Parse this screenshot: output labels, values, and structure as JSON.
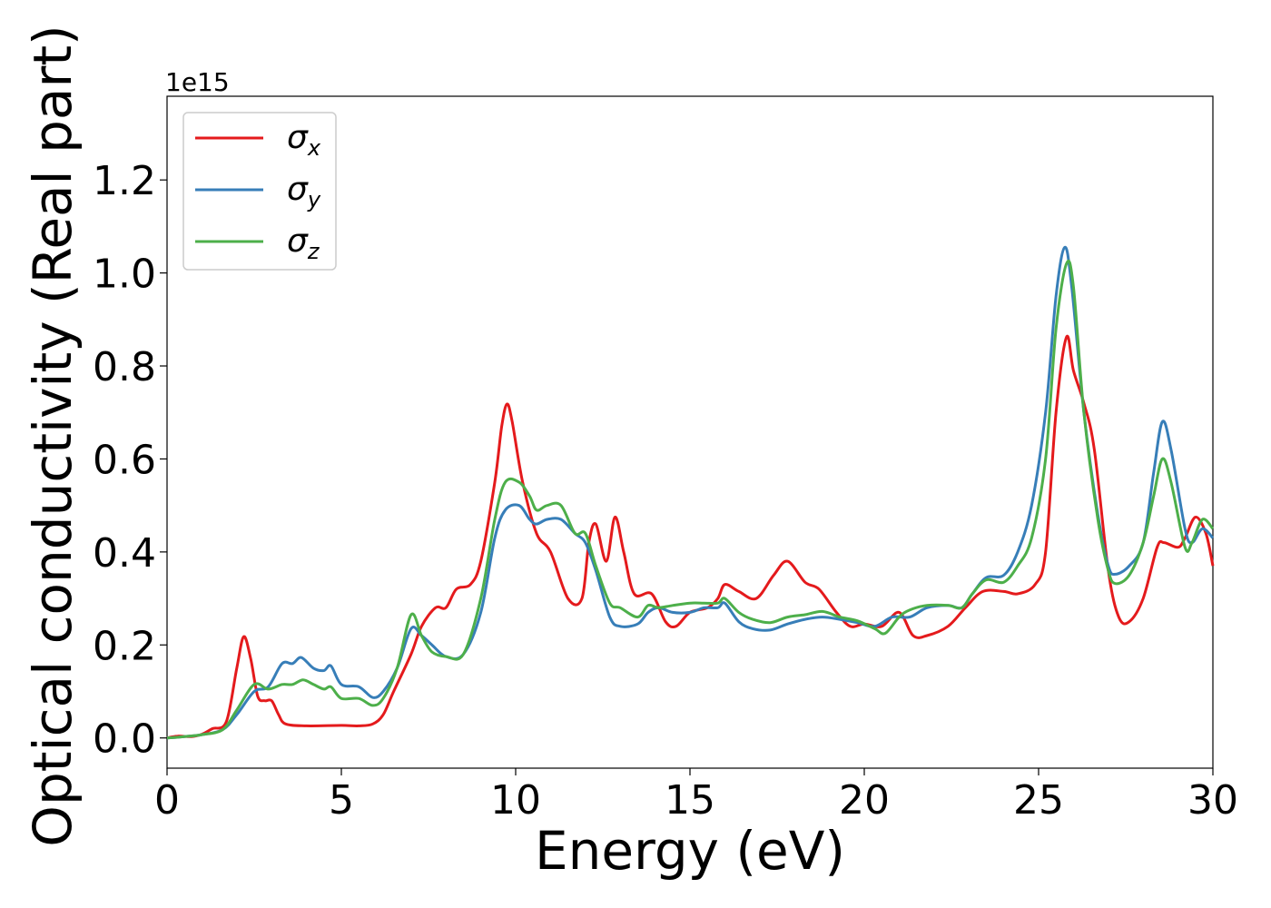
{
  "chart_data": {
    "type": "line",
    "xlabel": "Energy (eV)",
    "ylabel": "Optical conductivity (Real part)",
    "y_scale_label": "1e15",
    "xlim": [
      0,
      30
    ],
    "ylim": [
      -0.065,
      1.38
    ],
    "x_ticks": [
      {
        "value": 0,
        "label": "0"
      },
      {
        "value": 5,
        "label": "5"
      },
      {
        "value": 10,
        "label": "10"
      },
      {
        "value": 15,
        "label": "15"
      },
      {
        "value": 20,
        "label": "20"
      },
      {
        "value": 25,
        "label": "25"
      },
      {
        "value": 30,
        "label": "30"
      }
    ],
    "y_ticks": [
      {
        "value": 0.0,
        "label": "0.0"
      },
      {
        "value": 0.2,
        "label": "0.2"
      },
      {
        "value": 0.4,
        "label": "0.4"
      },
      {
        "value": 0.6,
        "label": "0.6"
      },
      {
        "value": 0.8,
        "label": "0.8"
      },
      {
        "value": 1.0,
        "label": "1.0"
      },
      {
        "value": 1.2,
        "label": "1.2"
      }
    ],
    "grid": false,
    "legend_position": "top-left",
    "series": [
      {
        "name": "σx",
        "symbol": "σ",
        "subscript": "x",
        "color": "#e41a1c",
        "points": [
          [
            0,
            0
          ],
          [
            0.3,
            0.004
          ],
          [
            0.7,
            0.003
          ],
          [
            1.0,
            0.008
          ],
          [
            1.3,
            0.02
          ],
          [
            1.7,
            0.035
          ],
          [
            2.0,
            0.15
          ],
          [
            2.2,
            0.218
          ],
          [
            2.4,
            0.17
          ],
          [
            2.6,
            0.09
          ],
          [
            2.8,
            0.08
          ],
          [
            3.0,
            0.08
          ],
          [
            3.2,
            0.05
          ],
          [
            3.4,
            0.03
          ],
          [
            4.0,
            0.026
          ],
          [
            5.0,
            0.027
          ],
          [
            5.5,
            0.026
          ],
          [
            5.9,
            0.03
          ],
          [
            6.2,
            0.05
          ],
          [
            6.5,
            0.1
          ],
          [
            7.0,
            0.18
          ],
          [
            7.3,
            0.24
          ],
          [
            7.7,
            0.28
          ],
          [
            8.0,
            0.28
          ],
          [
            8.3,
            0.32
          ],
          [
            8.7,
            0.33
          ],
          [
            9.0,
            0.38
          ],
          [
            9.4,
            0.55
          ],
          [
            9.6,
            0.67
          ],
          [
            9.75,
            0.718
          ],
          [
            9.9,
            0.68
          ],
          [
            10.2,
            0.55
          ],
          [
            10.6,
            0.44
          ],
          [
            11.0,
            0.4
          ],
          [
            11.5,
            0.3
          ],
          [
            11.9,
            0.3
          ],
          [
            12.1,
            0.42
          ],
          [
            12.3,
            0.46
          ],
          [
            12.6,
            0.38
          ],
          [
            12.85,
            0.475
          ],
          [
            13.1,
            0.4
          ],
          [
            13.4,
            0.31
          ],
          [
            13.9,
            0.31
          ],
          [
            14.3,
            0.25
          ],
          [
            14.6,
            0.24
          ],
          [
            15.0,
            0.27
          ],
          [
            15.5,
            0.28
          ],
          [
            15.8,
            0.3
          ],
          [
            16.0,
            0.33
          ],
          [
            16.4,
            0.315
          ],
          [
            16.9,
            0.3
          ],
          [
            17.4,
            0.35
          ],
          [
            17.8,
            0.38
          ],
          [
            18.3,
            0.335
          ],
          [
            18.7,
            0.32
          ],
          [
            19.2,
            0.27
          ],
          [
            19.6,
            0.24
          ],
          [
            20.0,
            0.245
          ],
          [
            20.5,
            0.24
          ],
          [
            21.0,
            0.27
          ],
          [
            21.4,
            0.22
          ],
          [
            21.8,
            0.22
          ],
          [
            22.4,
            0.24
          ],
          [
            22.9,
            0.28
          ],
          [
            23.4,
            0.315
          ],
          [
            24.0,
            0.315
          ],
          [
            24.4,
            0.31
          ],
          [
            24.9,
            0.33
          ],
          [
            25.2,
            0.4
          ],
          [
            25.5,
            0.7
          ],
          [
            25.8,
            0.862
          ],
          [
            26.0,
            0.79
          ],
          [
            26.3,
            0.72
          ],
          [
            26.6,
            0.62
          ],
          [
            27.0,
            0.36
          ],
          [
            27.3,
            0.26
          ],
          [
            27.6,
            0.25
          ],
          [
            28.0,
            0.3
          ],
          [
            28.4,
            0.41
          ],
          [
            28.6,
            0.42
          ],
          [
            29.0,
            0.41
          ],
          [
            29.2,
            0.43
          ],
          [
            29.5,
            0.475
          ],
          [
            29.8,
            0.44
          ],
          [
            30.0,
            0.37
          ]
        ]
      },
      {
        "name": "σy",
        "symbol": "σ",
        "subscript": "y",
        "color": "#377eb8",
        "points": [
          [
            0,
            0
          ],
          [
            0.5,
            0.003
          ],
          [
            1.0,
            0.007
          ],
          [
            1.6,
            0.018
          ],
          [
            2.0,
            0.05
          ],
          [
            2.5,
            0.1
          ],
          [
            2.9,
            0.11
          ],
          [
            3.3,
            0.16
          ],
          [
            3.6,
            0.16
          ],
          [
            3.85,
            0.173
          ],
          [
            4.2,
            0.15
          ],
          [
            4.5,
            0.145
          ],
          [
            4.7,
            0.155
          ],
          [
            5.0,
            0.115
          ],
          [
            5.5,
            0.11
          ],
          [
            5.9,
            0.087
          ],
          [
            6.2,
            0.1
          ],
          [
            6.6,
            0.15
          ],
          [
            7.0,
            0.235
          ],
          [
            7.3,
            0.22
          ],
          [
            7.6,
            0.2
          ],
          [
            8.0,
            0.175
          ],
          [
            8.5,
            0.18
          ],
          [
            9.0,
            0.27
          ],
          [
            9.4,
            0.43
          ],
          [
            9.7,
            0.49
          ],
          [
            10.1,
            0.5
          ],
          [
            10.4,
            0.47
          ],
          [
            10.6,
            0.46
          ],
          [
            10.9,
            0.47
          ],
          [
            11.3,
            0.47
          ],
          [
            11.7,
            0.44
          ],
          [
            12.0,
            0.42
          ],
          [
            12.3,
            0.36
          ],
          [
            12.7,
            0.26
          ],
          [
            13.0,
            0.24
          ],
          [
            13.5,
            0.245
          ],
          [
            13.8,
            0.27
          ],
          [
            14.1,
            0.28
          ],
          [
            14.5,
            0.27
          ],
          [
            15.0,
            0.27
          ],
          [
            15.4,
            0.28
          ],
          [
            15.8,
            0.28
          ],
          [
            16.0,
            0.29
          ],
          [
            16.4,
            0.25
          ],
          [
            16.8,
            0.235
          ],
          [
            17.3,
            0.232
          ],
          [
            17.8,
            0.245
          ],
          [
            18.3,
            0.255
          ],
          [
            18.8,
            0.26
          ],
          [
            19.3,
            0.255
          ],
          [
            19.8,
            0.248
          ],
          [
            20.3,
            0.24
          ],
          [
            20.8,
            0.26
          ],
          [
            21.3,
            0.26
          ],
          [
            21.8,
            0.28
          ],
          [
            22.4,
            0.285
          ],
          [
            22.8,
            0.28
          ],
          [
            23.1,
            0.31
          ],
          [
            23.5,
            0.345
          ],
          [
            24.0,
            0.35
          ],
          [
            24.4,
            0.4
          ],
          [
            24.8,
            0.5
          ],
          [
            25.2,
            0.7
          ],
          [
            25.5,
            0.95
          ],
          [
            25.75,
            1.055
          ],
          [
            25.95,
            0.97
          ],
          [
            26.3,
            0.7
          ],
          [
            26.7,
            0.48
          ],
          [
            27.0,
            0.37
          ],
          [
            27.2,
            0.352
          ],
          [
            27.6,
            0.37
          ],
          [
            28.0,
            0.42
          ],
          [
            28.3,
            0.57
          ],
          [
            28.55,
            0.68
          ],
          [
            28.8,
            0.62
          ],
          [
            29.2,
            0.45
          ],
          [
            29.4,
            0.42
          ],
          [
            29.7,
            0.45
          ],
          [
            30.0,
            0.43
          ]
        ]
      },
      {
        "name": "σz",
        "symbol": "σ",
        "subscript": "z",
        "color": "#4daf4a",
        "points": [
          [
            0,
            0
          ],
          [
            0.5,
            0.003
          ],
          [
            1.0,
            0.007
          ],
          [
            1.6,
            0.018
          ],
          [
            2.0,
            0.06
          ],
          [
            2.5,
            0.115
          ],
          [
            2.9,
            0.105
          ],
          [
            3.3,
            0.115
          ],
          [
            3.6,
            0.115
          ],
          [
            3.9,
            0.125
          ],
          [
            4.2,
            0.115
          ],
          [
            4.5,
            0.105
          ],
          [
            4.7,
            0.11
          ],
          [
            5.0,
            0.085
          ],
          [
            5.5,
            0.085
          ],
          [
            5.9,
            0.07
          ],
          [
            6.2,
            0.085
          ],
          [
            6.6,
            0.15
          ],
          [
            7.0,
            0.265
          ],
          [
            7.3,
            0.22
          ],
          [
            7.6,
            0.185
          ],
          [
            8.0,
            0.175
          ],
          [
            8.5,
            0.18
          ],
          [
            9.0,
            0.3
          ],
          [
            9.4,
            0.47
          ],
          [
            9.7,
            0.55
          ],
          [
            10.1,
            0.55
          ],
          [
            10.4,
            0.52
          ],
          [
            10.6,
            0.49
          ],
          [
            10.9,
            0.5
          ],
          [
            11.3,
            0.5
          ],
          [
            11.7,
            0.44
          ],
          [
            12.0,
            0.44
          ],
          [
            12.3,
            0.37
          ],
          [
            12.7,
            0.29
          ],
          [
            13.0,
            0.28
          ],
          [
            13.5,
            0.26
          ],
          [
            13.8,
            0.285
          ],
          [
            14.1,
            0.28
          ],
          [
            14.5,
            0.285
          ],
          [
            15.0,
            0.29
          ],
          [
            15.4,
            0.29
          ],
          [
            15.8,
            0.29
          ],
          [
            16.0,
            0.3
          ],
          [
            16.4,
            0.27
          ],
          [
            16.8,
            0.255
          ],
          [
            17.3,
            0.248
          ],
          [
            17.8,
            0.26
          ],
          [
            18.3,
            0.265
          ],
          [
            18.8,
            0.272
          ],
          [
            19.3,
            0.26
          ],
          [
            19.8,
            0.252
          ],
          [
            20.3,
            0.235
          ],
          [
            20.6,
            0.225
          ],
          [
            21.0,
            0.26
          ],
          [
            21.3,
            0.275
          ],
          [
            21.8,
            0.285
          ],
          [
            22.4,
            0.285
          ],
          [
            22.8,
            0.28
          ],
          [
            23.1,
            0.31
          ],
          [
            23.5,
            0.34
          ],
          [
            24.0,
            0.335
          ],
          [
            24.4,
            0.37
          ],
          [
            24.8,
            0.43
          ],
          [
            25.2,
            0.6
          ],
          [
            25.5,
            0.88
          ],
          [
            25.8,
            1.02
          ],
          [
            26.0,
            0.97
          ],
          [
            26.3,
            0.7
          ],
          [
            26.7,
            0.47
          ],
          [
            27.0,
            0.36
          ],
          [
            27.2,
            0.332
          ],
          [
            27.6,
            0.35
          ],
          [
            28.0,
            0.42
          ],
          [
            28.3,
            0.52
          ],
          [
            28.55,
            0.6
          ],
          [
            28.8,
            0.55
          ],
          [
            29.2,
            0.41
          ],
          [
            29.4,
            0.42
          ],
          [
            29.7,
            0.47
          ],
          [
            30.0,
            0.45
          ]
        ]
      }
    ]
  }
}
